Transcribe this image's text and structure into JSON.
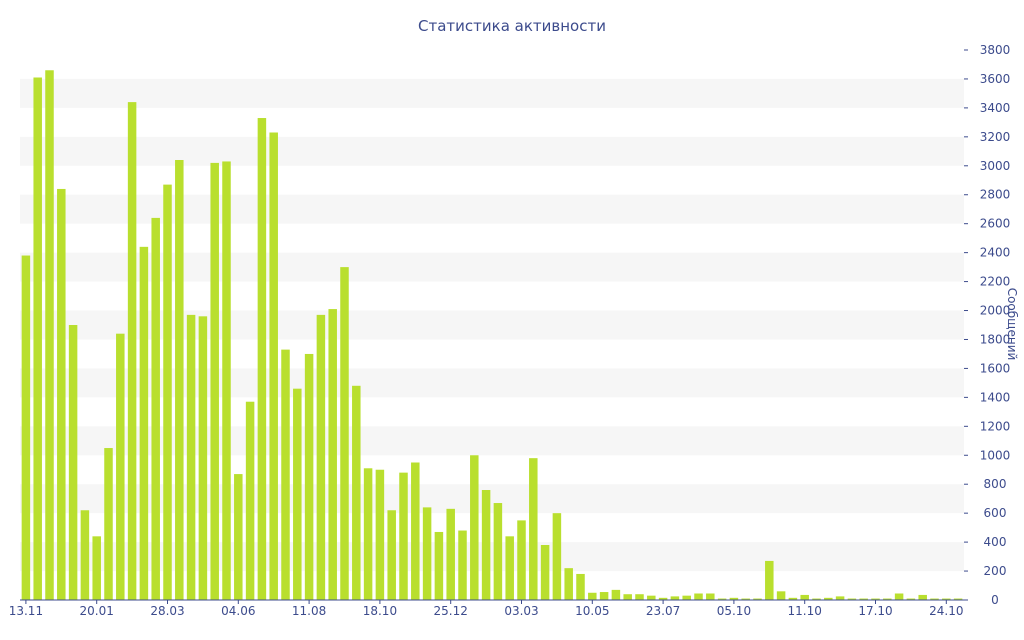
{
  "chart_data": {
    "type": "bar",
    "title": "Статистика активности",
    "ylabel": "Сообщений",
    "xlabel": "",
    "ylim": [
      0,
      3800
    ],
    "y_ticks": [
      0,
      200,
      400,
      600,
      800,
      1000,
      1200,
      1400,
      1600,
      1800,
      2000,
      2200,
      2400,
      2600,
      2800,
      3000,
      3200,
      3400,
      3600,
      3800
    ],
    "y_axis_side": "right",
    "grid": "alternating horizontal bands",
    "x_tick_labels": [
      {
        "index": 0,
        "label": "13.11"
      },
      {
        "index": 6,
        "label": "20.01"
      },
      {
        "index": 12,
        "label": "28.03"
      },
      {
        "index": 18,
        "label": "04.06"
      },
      {
        "index": 24,
        "label": "11.08"
      },
      {
        "index": 30,
        "label": "18.10"
      },
      {
        "index": 36,
        "label": "25.12"
      },
      {
        "index": 42,
        "label": "03.03"
      },
      {
        "index": 48,
        "label": "10.05"
      },
      {
        "index": 54,
        "label": "23.07"
      },
      {
        "index": 60,
        "label": "05.10"
      },
      {
        "index": 66,
        "label": "11.10"
      },
      {
        "index": 72,
        "label": "17.10"
      },
      {
        "index": 78,
        "label": "24.10"
      }
    ],
    "values": [
      2380,
      3610,
      3660,
      2840,
      1900,
      620,
      440,
      1050,
      1840,
      3440,
      2440,
      2640,
      2870,
      3040,
      1970,
      1960,
      3020,
      3030,
      870,
      1370,
      3330,
      3230,
      1730,
      1460,
      1700,
      1970,
      2010,
      2300,
      1480,
      910,
      900,
      620,
      880,
      950,
      640,
      470,
      630,
      480,
      1000,
      760,
      670,
      440,
      550,
      980,
      380,
      600,
      220,
      180,
      50,
      55,
      70,
      40,
      40,
      30,
      15,
      25,
      30,
      45,
      45,
      10,
      15,
      10,
      10,
      270,
      60,
      15,
      35,
      10,
      15,
      25,
      10,
      10,
      10,
      10,
      45,
      10,
      35,
      10,
      10,
      10
    ],
    "colors": {
      "bar": "#b9df2e",
      "text": "#3c4b8c",
      "band": "#f6f6f6"
    }
  }
}
